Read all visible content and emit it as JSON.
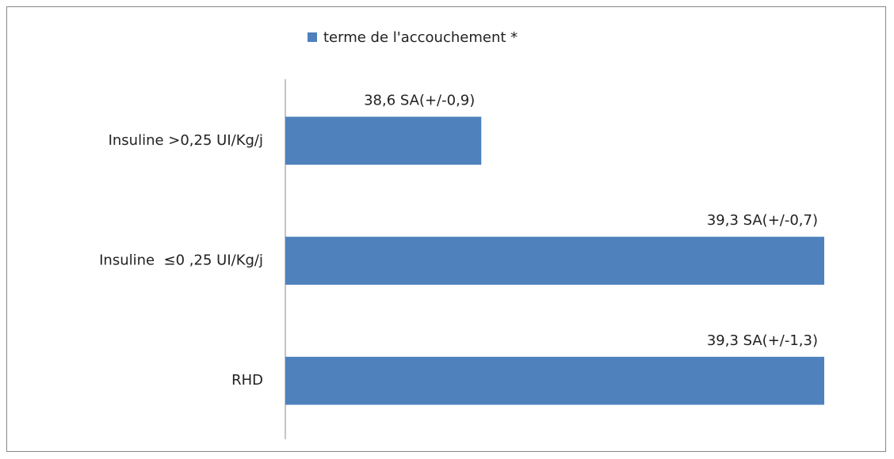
{
  "chart_data": {
    "type": "bar",
    "orientation": "horizontal",
    "categories": [
      "Insuline >0,25 UI/Kg/j",
      "Insuline  ≤0 ,25 UI/Kg/j",
      "RHD"
    ],
    "series": [
      {
        "name": "terme de l'accouchement *",
        "color": "#4f81bd",
        "values": [
          38.6,
          39.3,
          39.3
        ],
        "value_labels": [
          "38,6 SA(+/-0,9)",
          "39,3 SA(+/-0,7)",
          "39,3 SA(+/-1,3)"
        ]
      }
    ],
    "xlim": [
      38.2,
      39.3
    ],
    "legend": "top"
  }
}
